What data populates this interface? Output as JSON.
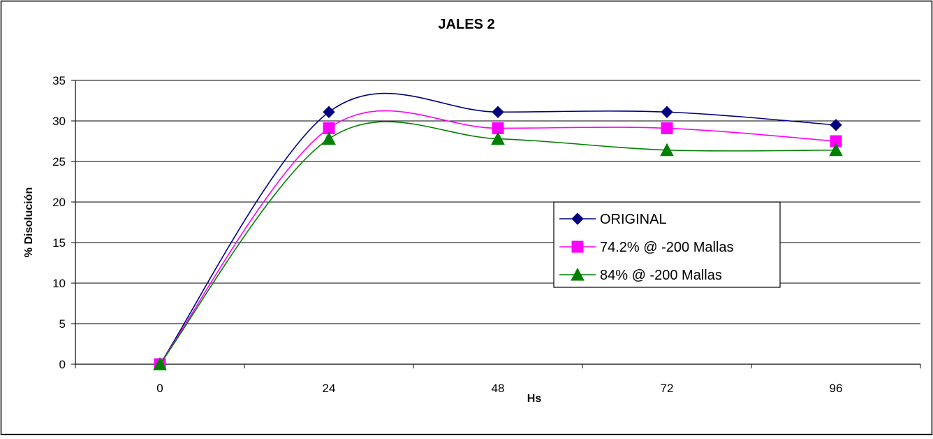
{
  "chart_data": {
    "type": "line",
    "title": "JALES 2",
    "xlabel": "Hs",
    "ylabel": "% Disolución",
    "categories": [
      "0",
      "24",
      "48",
      "72",
      "96"
    ],
    "x": [
      0,
      24,
      48,
      72,
      96
    ],
    "ylim": [
      0,
      35
    ],
    "yticks": [
      0,
      5,
      10,
      15,
      20,
      25,
      30,
      35
    ],
    "grid": "horizontal",
    "smoothed": true,
    "legend_position": "center-right",
    "series": [
      {
        "name": "ORIGINAL",
        "values": [
          0,
          31.1,
          31.1,
          31.1,
          29.5
        ],
        "color": "#000080",
        "marker": "diamond"
      },
      {
        "name": "74.2% @ -200 Mallas",
        "values": [
          0,
          29.1,
          29.1,
          29.1,
          27.5
        ],
        "color": "#ff00ff",
        "marker": "square"
      },
      {
        "name": "84% @ -200 Mallas",
        "values": [
          0,
          27.8,
          27.8,
          26.4,
          26.4
        ],
        "color": "#008000",
        "marker": "triangle"
      }
    ]
  }
}
